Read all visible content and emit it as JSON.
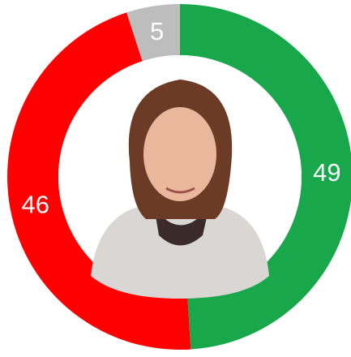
{
  "chart_data": {
    "type": "donut",
    "categories": [
      "49",
      "46",
      "5"
    ],
    "values": [
      49,
      46,
      5
    ],
    "colors": [
      "#18a84b",
      "#fe0000",
      "#bdbdbd"
    ],
    "start_angle": 0,
    "direction": "clockwise"
  }
}
